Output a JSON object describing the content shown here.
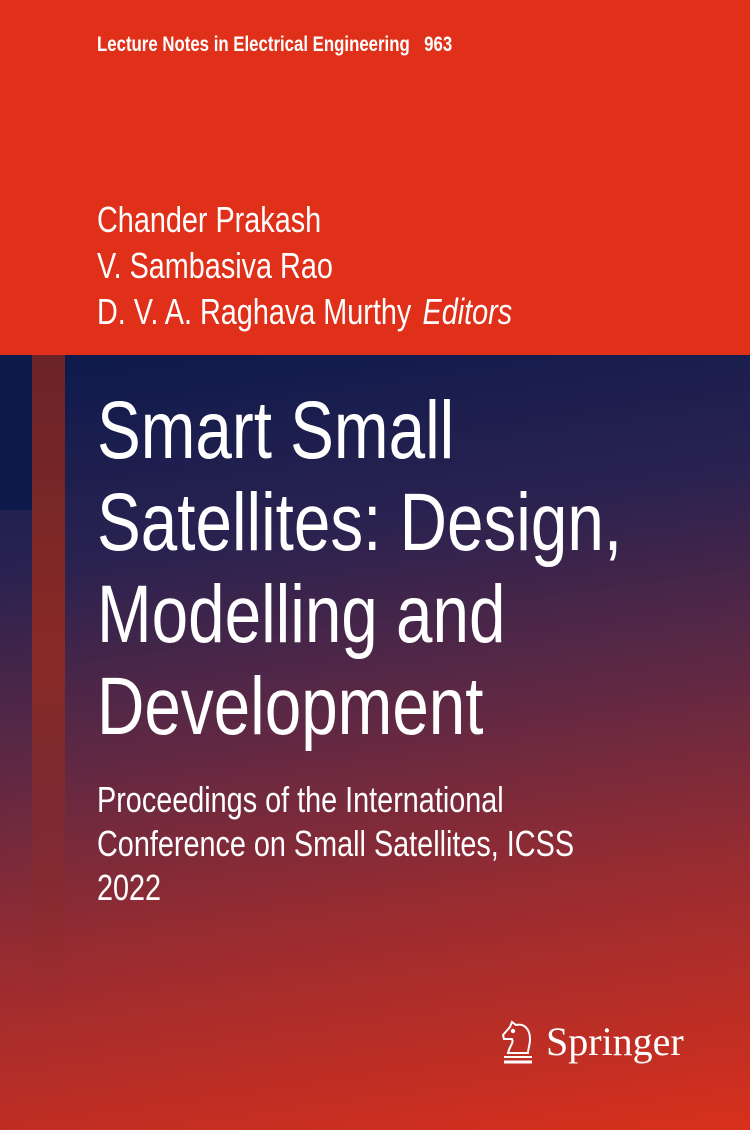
{
  "series": {
    "name": "Lecture Notes in Electrical Engineering",
    "volume": "963"
  },
  "editors": {
    "names": [
      "Chander Prakash",
      "V. Sambasiva Rao",
      "D. V. A. Raghava Murthy"
    ],
    "role": "Editors"
  },
  "title": {
    "lines": [
      "Smart Small",
      "Satellites: Design,",
      "Modelling and",
      "Development"
    ]
  },
  "subtitle": {
    "lines": [
      "Proceedings of the International",
      "Conference on Small Satellites, ICSS",
      "2022"
    ]
  },
  "publisher": {
    "name": "Springer",
    "logo_icon": "knight-chess-horse-icon"
  },
  "colors": {
    "top_band": "#e0301a",
    "navy": "#0c1a4c",
    "bottom_red": "#d8301c"
  }
}
